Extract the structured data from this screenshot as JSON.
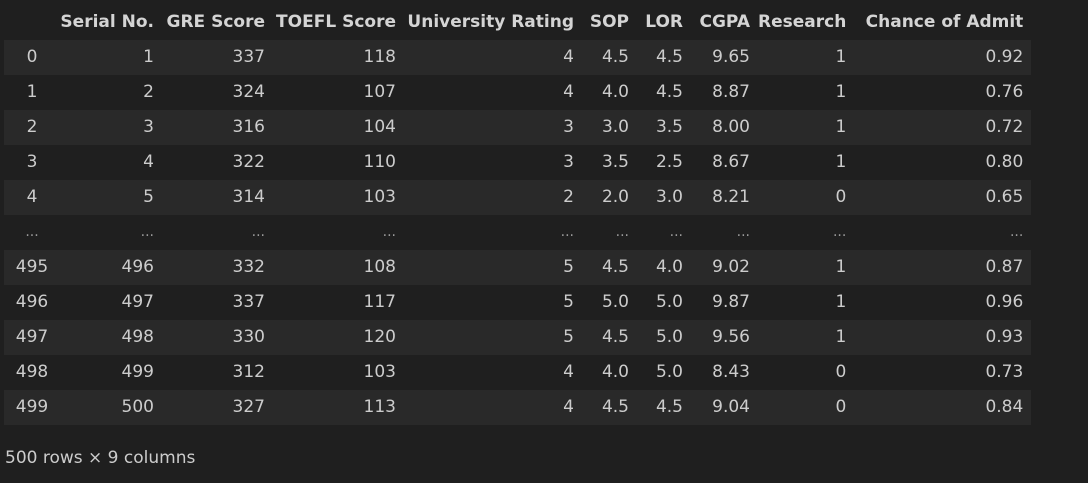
{
  "table": {
    "columns": [
      "",
      "Serial No.",
      "GRE Score",
      "TOEFL Score",
      "University Rating",
      "SOP",
      "LOR",
      "CGPA",
      "Research",
      "Chance of Admit"
    ],
    "rows": [
      {
        "index": "0",
        "cells": [
          "1",
          "337",
          "118",
          "4",
          "4.5",
          "4.5",
          "9.65",
          "1",
          "0.92"
        ]
      },
      {
        "index": "1",
        "cells": [
          "2",
          "324",
          "107",
          "4",
          "4.0",
          "4.5",
          "8.87",
          "1",
          "0.76"
        ]
      },
      {
        "index": "2",
        "cells": [
          "3",
          "316",
          "104",
          "3",
          "3.0",
          "3.5",
          "8.00",
          "1",
          "0.72"
        ]
      },
      {
        "index": "3",
        "cells": [
          "4",
          "322",
          "110",
          "3",
          "3.5",
          "2.5",
          "8.67",
          "1",
          "0.80"
        ]
      },
      {
        "index": "4",
        "cells": [
          "5",
          "314",
          "103",
          "2",
          "2.0",
          "3.0",
          "8.21",
          "0",
          "0.65"
        ]
      },
      {
        "index": "...",
        "cells": [
          "...",
          "...",
          "...",
          "...",
          "...",
          "...",
          "...",
          "...",
          "..."
        ]
      },
      {
        "index": "495",
        "cells": [
          "496",
          "332",
          "108",
          "5",
          "4.5",
          "4.0",
          "9.02",
          "1",
          "0.87"
        ]
      },
      {
        "index": "496",
        "cells": [
          "497",
          "337",
          "117",
          "5",
          "5.0",
          "5.0",
          "9.87",
          "1",
          "0.96"
        ]
      },
      {
        "index": "497",
        "cells": [
          "498",
          "330",
          "120",
          "5",
          "4.5",
          "5.0",
          "9.56",
          "1",
          "0.93"
        ]
      },
      {
        "index": "498",
        "cells": [
          "499",
          "312",
          "103",
          "4",
          "4.0",
          "5.0",
          "8.43",
          "0",
          "0.73"
        ]
      },
      {
        "index": "499",
        "cells": [
          "500",
          "327",
          "113",
          "4",
          "4.5",
          "4.5",
          "9.04",
          "0",
          "0.84"
        ]
      }
    ]
  },
  "footer": {
    "shape_text": "500 rows × 9 columns"
  }
}
